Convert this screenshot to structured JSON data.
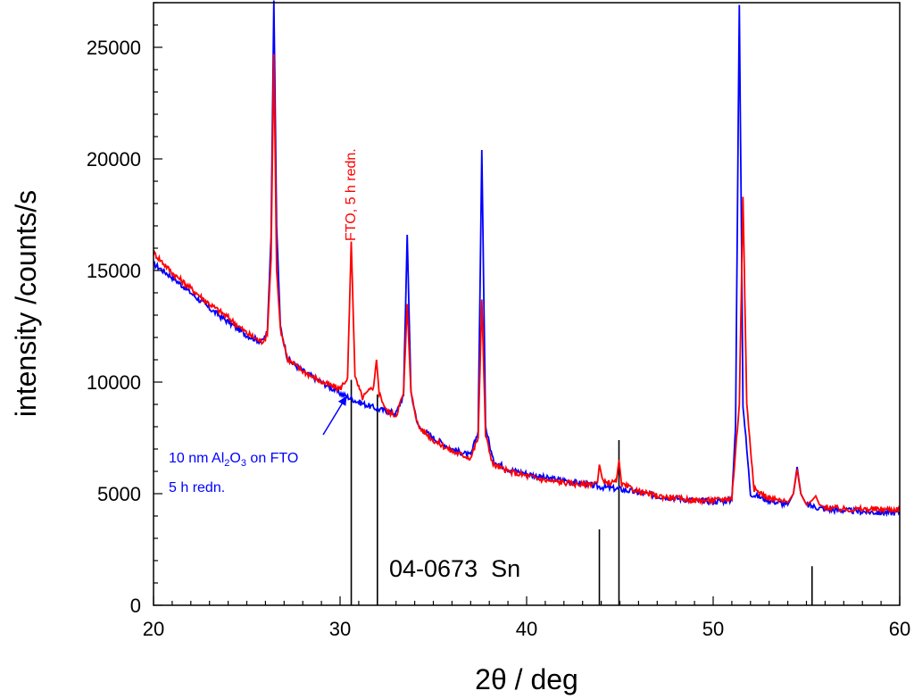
{
  "chart_data": {
    "type": "line",
    "xlabel": "2θ / deg",
    "ylabel": "intensity /counts/s",
    "xlim": [
      20,
      60
    ],
    "ylim": [
      0,
      27000
    ],
    "x_ticks": [
      "20",
      "30",
      "40",
      "50",
      "60"
    ],
    "y_ticks": [
      "0",
      "5000",
      "10000",
      "15000",
      "20000",
      "25000"
    ],
    "grid": false,
    "series": [
      {
        "color": "#0000ff",
        "points": [
          [
            20,
            15300
          ],
          [
            21,
            14700
          ],
          [
            22,
            14000
          ],
          [
            23,
            13300
          ],
          [
            24,
            12700
          ],
          [
            25,
            12100
          ],
          [
            25.8,
            11800
          ],
          [
            26.1,
            12200
          ],
          [
            26.3,
            16500
          ],
          [
            26.45,
            27100
          ],
          [
            26.6,
            17000
          ],
          [
            26.8,
            12500
          ],
          [
            27.2,
            11000
          ],
          [
            28,
            10500
          ],
          [
            29,
            10000
          ],
          [
            30,
            9500
          ],
          [
            31,
            9100
          ],
          [
            32,
            8800
          ],
          [
            33,
            8600
          ],
          [
            33.4,
            9400
          ],
          [
            33.6,
            16600
          ],
          [
            33.8,
            9500
          ],
          [
            34.2,
            8000
          ],
          [
            35,
            7500
          ],
          [
            36,
            7000
          ],
          [
            37,
            6700
          ],
          [
            37.4,
            7800
          ],
          [
            37.6,
            20400
          ],
          [
            37.8,
            8000
          ],
          [
            38.2,
            6500
          ],
          [
            39,
            6100
          ],
          [
            40,
            5900
          ],
          [
            41,
            5700
          ],
          [
            42,
            5600
          ],
          [
            43,
            5450
          ],
          [
            44,
            5300
          ],
          [
            45,
            5200
          ],
          [
            46,
            5050
          ],
          [
            47,
            4900
          ],
          [
            48,
            4800
          ],
          [
            49,
            4700
          ],
          [
            50,
            4650
          ],
          [
            51,
            4700
          ],
          [
            51.2,
            8000
          ],
          [
            51.4,
            26900
          ],
          [
            51.6,
            9000
          ],
          [
            52,
            5000
          ],
          [
            53,
            4700
          ],
          [
            54,
            4500
          ],
          [
            54.3,
            5000
          ],
          [
            54.5,
            6200
          ],
          [
            54.7,
            5000
          ],
          [
            55,
            4500
          ],
          [
            56,
            4300
          ],
          [
            57,
            4250
          ],
          [
            58,
            4200
          ],
          [
            59,
            4150
          ],
          [
            60,
            4150
          ]
        ]
      },
      {
        "color": "#ff0000",
        "points": [
          [
            20,
            15800
          ],
          [
            21,
            14900
          ],
          [
            22,
            14200
          ],
          [
            23,
            13500
          ],
          [
            24,
            12900
          ],
          [
            25,
            12200
          ],
          [
            25.8,
            11800
          ],
          [
            26.1,
            12100
          ],
          [
            26.3,
            15500
          ],
          [
            26.45,
            24700
          ],
          [
            26.6,
            15000
          ],
          [
            26.8,
            12400
          ],
          [
            27.2,
            11000
          ],
          [
            28,
            10500
          ],
          [
            29,
            10000
          ],
          [
            30,
            9700
          ],
          [
            30.4,
            10200
          ],
          [
            30.6,
            16300
          ],
          [
            30.8,
            10200
          ],
          [
            31.2,
            9300
          ],
          [
            31.8,
            9800
          ],
          [
            31.95,
            11000
          ],
          [
            32.1,
            9500
          ],
          [
            32.5,
            8700
          ],
          [
            33,
            8500
          ],
          [
            33.4,
            9500
          ],
          [
            33.6,
            13500
          ],
          [
            33.8,
            9500
          ],
          [
            34.2,
            8000
          ],
          [
            35,
            7400
          ],
          [
            36,
            6900
          ],
          [
            37,
            6600
          ],
          [
            37.4,
            7500
          ],
          [
            37.6,
            13700
          ],
          [
            37.8,
            7600
          ],
          [
            38.2,
            6300
          ],
          [
            39,
            6000
          ],
          [
            40,
            5800
          ],
          [
            41,
            5600
          ],
          [
            42,
            5500
          ],
          [
            43,
            5400
          ],
          [
            43.8,
            5500
          ],
          [
            43.9,
            6300
          ],
          [
            44.1,
            5500
          ],
          [
            44.8,
            5500
          ],
          [
            44.95,
            6500
          ],
          [
            45.1,
            5400
          ],
          [
            46,
            5100
          ],
          [
            47,
            4900
          ],
          [
            48,
            4800
          ],
          [
            49,
            4700
          ],
          [
            50,
            4700
          ],
          [
            51,
            4800
          ],
          [
            51.4,
            9000
          ],
          [
            51.6,
            18300
          ],
          [
            51.8,
            9000
          ],
          [
            52.2,
            5200
          ],
          [
            53,
            4800
          ],
          [
            54,
            4600
          ],
          [
            54.3,
            5000
          ],
          [
            54.5,
            6100
          ],
          [
            54.7,
            5000
          ],
          [
            55,
            4500
          ],
          [
            55.3,
            4700
          ],
          [
            55.5,
            4900
          ],
          [
            55.7,
            4500
          ],
          [
            56,
            4400
          ],
          [
            57,
            4300
          ],
          [
            58,
            4300
          ],
          [
            59,
            4300
          ],
          [
            60,
            4300
          ]
        ]
      }
    ],
    "reference_lines": {
      "label": "04-0673  Sn",
      "color": "#000000",
      "sticks": [
        [
          30.6,
          10100
        ],
        [
          32.0,
          9450
        ],
        [
          43.9,
          3400
        ],
        [
          44.95,
          7400
        ],
        [
          55.3,
          1750
        ]
      ]
    },
    "annotations": [
      {
        "text": "FTO, 5 h redn.",
        "color": "#ff0000"
      },
      {
        "line1_parts": [
          "10 nm Al",
          "2",
          "O",
          "3",
          " on FTO"
        ],
        "line2": "5 h redn.",
        "color": "#0000ff",
        "arrow_to": [
          30.3,
          9300
        ]
      }
    ]
  }
}
